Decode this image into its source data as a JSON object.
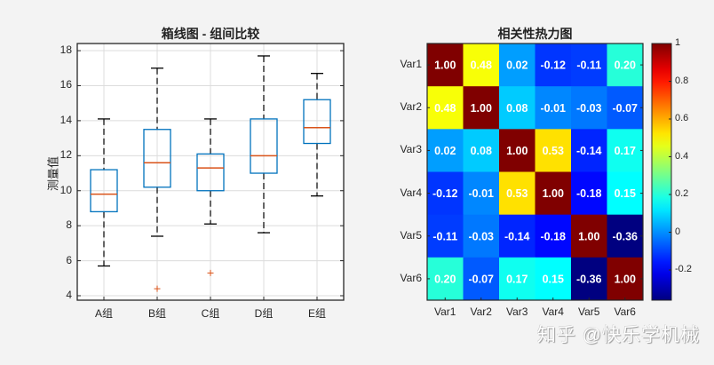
{
  "watermark": "知乎 @快乐学机械",
  "chart_data": [
    {
      "type": "box",
      "title": "箱线图 - 组间比较",
      "xlabel": "",
      "ylabel": "测量值",
      "ylim": [
        3.8,
        18.4
      ],
      "yticks": [
        4,
        6,
        8,
        10,
        12,
        14,
        16,
        18
      ],
      "grid": true,
      "categories": [
        "A组",
        "B组",
        "C组",
        "D组",
        "E组"
      ],
      "boxes": [
        {
          "name": "A组",
          "whisker_low": 5.7,
          "q1": 8.8,
          "median": 9.8,
          "q3": 11.2,
          "whisker_high": 14.1,
          "outliers": []
        },
        {
          "name": "B组",
          "whisker_low": 7.4,
          "q1": 10.2,
          "median": 11.6,
          "q3": 13.5,
          "whisker_high": 17.0,
          "outliers": [
            4.4
          ]
        },
        {
          "name": "C组",
          "whisker_low": 8.1,
          "q1": 10.0,
          "median": 11.3,
          "q3": 12.1,
          "whisker_high": 14.1,
          "outliers": [
            5.3
          ]
        },
        {
          "name": "D组",
          "whisker_low": 7.6,
          "q1": 11.0,
          "median": 12.0,
          "q3": 14.1,
          "whisker_high": 17.7,
          "outliers": []
        },
        {
          "name": "E组",
          "whisker_low": 9.7,
          "q1": 12.7,
          "median": 13.6,
          "q3": 15.2,
          "whisker_high": 16.7,
          "outliers": []
        }
      ],
      "colors": {
        "box": "#0072BD",
        "median": "#D95319",
        "whisker": "#000000",
        "outlier": "#D95319"
      }
    },
    {
      "type": "heatmap",
      "title": "相关性热力图",
      "x_labels": [
        "Var1",
        "Var2",
        "Var3",
        "Var4",
        "Var5",
        "Var6"
      ],
      "y_labels": [
        "Var1",
        "Var2",
        "Var3",
        "Var4",
        "Var5",
        "Var6"
      ],
      "values": [
        [
          1.0,
          0.48,
          0.02,
          -0.12,
          -0.11,
          0.2
        ],
        [
          0.48,
          1.0,
          0.08,
          -0.01,
          -0.03,
          -0.07
        ],
        [
          0.02,
          0.08,
          1.0,
          0.53,
          -0.14,
          0.17
        ],
        [
          -0.12,
          -0.01,
          0.53,
          1.0,
          -0.18,
          0.15
        ],
        [
          -0.11,
          -0.03,
          -0.14,
          -0.18,
          1.0,
          -0.36
        ],
        [
          0.2,
          -0.07,
          0.17,
          0.15,
          -0.36,
          1.0
        ]
      ],
      "colormap": "jet",
      "colorbar": {
        "min": -0.36,
        "max": 1.0,
        "ticks": [
          -0.2,
          0,
          0.2,
          0.4,
          0.6,
          0.8,
          1
        ],
        "tick_labels": [
          "-0.2",
          "0",
          "0.2",
          "0.4",
          "0.6",
          "0.8",
          "1"
        ]
      }
    }
  ]
}
